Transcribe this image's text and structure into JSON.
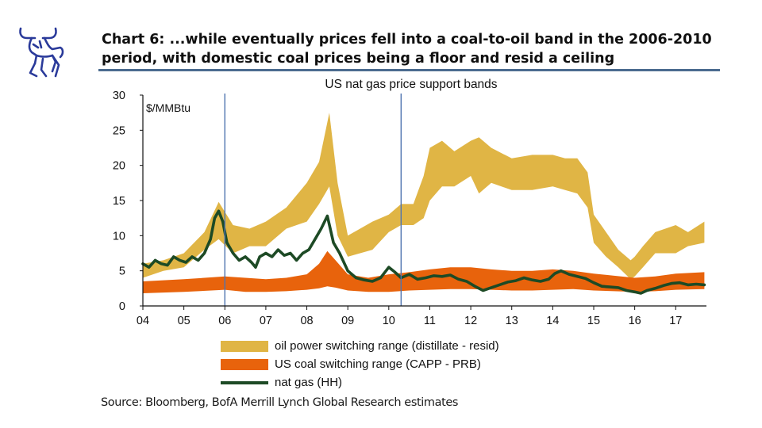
{
  "header": {
    "title": "Chart 6: ...while eventually prices fell into a coal-to-oil band in the 2006-2010 period, with domestic coal prices being a floor and resid a ceiling",
    "logo": "bull-logo-icon"
  },
  "footer": {
    "source": "Source: Bloomberg, BofA Merrill Lynch Global Research estimates"
  },
  "chart_data": {
    "type": "area",
    "title": "US nat gas price support bands",
    "unit_label": "$/MMBtu",
    "xlabel": "",
    "ylabel": "",
    "xlim": [
      2004,
      2017.75
    ],
    "ylim": [
      0,
      30
    ],
    "y_ticks": [
      0,
      5,
      10,
      15,
      20,
      25,
      30
    ],
    "x_ticks": [
      {
        "value": 2004,
        "label": "04"
      },
      {
        "value": 2005,
        "label": "05"
      },
      {
        "value": 2006,
        "label": "06"
      },
      {
        "value": 2007,
        "label": "07"
      },
      {
        "value": 2008,
        "label": "08"
      },
      {
        "value": 2009,
        "label": "09"
      },
      {
        "value": 2010,
        "label": "10"
      },
      {
        "value": 2011,
        "label": "11"
      },
      {
        "value": 2012,
        "label": "12"
      },
      {
        "value": 2013,
        "label": "13"
      },
      {
        "value": 2014,
        "label": "14"
      },
      {
        "value": 2015,
        "label": "15"
      },
      {
        "value": 2016,
        "label": "16"
      },
      {
        "value": 2017,
        "label": "17"
      }
    ],
    "grid": false,
    "legend_position": "bottom",
    "vertical_markers": [
      2006.0,
      2010.3
    ],
    "series": [
      {
        "name": "oil power switching range (distillate - resid)",
        "kind": "band",
        "color": "#e0b545",
        "x": [
          2004.0,
          2004.5,
          2005.0,
          2005.5,
          2005.85,
          2006.2,
          2006.6,
          2007.0,
          2007.5,
          2008.0,
          2008.3,
          2008.55,
          2008.75,
          2009.0,
          2009.3,
          2009.6,
          2010.0,
          2010.3,
          2010.6,
          2010.85,
          2011.0,
          2011.3,
          2011.6,
          2012.0,
          2012.2,
          2012.5,
          2013.0,
          2013.5,
          2014.0,
          2014.3,
          2014.6,
          2014.85,
          2015.0,
          2015.3,
          2015.6,
          2015.9,
          2016.0,
          2016.2,
          2016.5,
          2017.0,
          2017.3,
          2017.7
        ],
        "lower": [
          4.0,
          5.0,
          5.5,
          8.0,
          9.5,
          7.5,
          8.5,
          8.5,
          11.0,
          12.0,
          14.5,
          17.0,
          10.0,
          7.0,
          7.5,
          8.0,
          10.5,
          11.5,
          11.5,
          12.5,
          15.0,
          17.0,
          17.0,
          18.5,
          16.0,
          17.5,
          16.5,
          16.5,
          17.0,
          16.5,
          16.0,
          14.0,
          9.0,
          7.0,
          5.5,
          3.8,
          4.2,
          5.5,
          7.5,
          7.5,
          8.5,
          9.0
        ],
        "upper": [
          6.0,
          6.5,
          7.5,
          10.5,
          14.8,
          11.5,
          11.0,
          12.0,
          14.0,
          17.5,
          20.5,
          27.5,
          17.5,
          10.0,
          11.0,
          12.0,
          13.0,
          14.5,
          14.5,
          18.5,
          22.5,
          23.5,
          22.0,
          23.5,
          24.0,
          22.5,
          21.0,
          21.5,
          21.5,
          21.0,
          21.0,
          19.0,
          13.0,
          10.5,
          8.0,
          6.5,
          7.0,
          8.5,
          10.5,
          11.5,
          10.5,
          12.0
        ]
      },
      {
        "name": "US coal switching range (CAPP - PRB)",
        "kind": "band",
        "color": "#e8630c",
        "x": [
          2004.0,
          2005.0,
          2006.0,
          2006.5,
          2007.0,
          2007.5,
          2008.0,
          2008.3,
          2008.5,
          2008.7,
          2009.0,
          2009.5,
          2010.0,
          2010.5,
          2011.0,
          2011.5,
          2012.0,
          2012.5,
          2013.0,
          2013.5,
          2014.0,
          2014.5,
          2015.0,
          2015.5,
          2016.0,
          2016.5,
          2017.0,
          2017.7
        ],
        "lower": [
          1.8,
          2.0,
          2.3,
          2.0,
          2.0,
          2.1,
          2.3,
          2.5,
          2.8,
          2.6,
          2.2,
          2.0,
          2.0,
          2.2,
          2.3,
          2.4,
          2.4,
          2.3,
          2.2,
          2.2,
          2.3,
          2.4,
          2.2,
          2.1,
          2.0,
          2.1,
          2.3,
          2.4
        ],
        "upper": [
          3.5,
          3.8,
          4.2,
          4.0,
          3.8,
          4.0,
          4.5,
          6.0,
          7.8,
          6.5,
          4.5,
          4.0,
          4.5,
          4.8,
          5.2,
          5.5,
          5.5,
          5.2,
          5.0,
          5.0,
          5.2,
          5.0,
          4.6,
          4.3,
          4.0,
          4.2,
          4.6,
          4.8
        ]
      },
      {
        "name": "nat gas (HH)",
        "kind": "line",
        "color": "#1d4a25",
        "x": [
          2004.0,
          2004.15,
          2004.3,
          2004.45,
          2004.6,
          2004.75,
          2004.9,
          2005.05,
          2005.2,
          2005.35,
          2005.5,
          2005.65,
          2005.75,
          2005.85,
          2005.95,
          2006.05,
          2006.2,
          2006.35,
          2006.5,
          2006.65,
          2006.75,
          2006.85,
          2007.0,
          2007.15,
          2007.3,
          2007.45,
          2007.6,
          2007.75,
          2007.9,
          2008.05,
          2008.2,
          2008.35,
          2008.5,
          2008.65,
          2008.8,
          2009.0,
          2009.2,
          2009.4,
          2009.6,
          2009.8,
          2010.0,
          2010.15,
          2010.3,
          2010.5,
          2010.7,
          2010.9,
          2011.1,
          2011.3,
          2011.5,
          2011.7,
          2011.9,
          2012.1,
          2012.3,
          2012.5,
          2012.7,
          2012.9,
          2013.1,
          2013.3,
          2013.5,
          2013.7,
          2013.9,
          2014.05,
          2014.2,
          2014.4,
          2014.6,
          2014.8,
          2015.0,
          2015.2,
          2015.4,
          2015.6,
          2015.8,
          2016.0,
          2016.15,
          2016.3,
          2016.5,
          2016.7,
          2016.9,
          2017.1,
          2017.3,
          2017.5,
          2017.7
        ],
        "y": [
          6.0,
          5.5,
          6.5,
          6.0,
          5.8,
          7.0,
          6.5,
          6.2,
          7.0,
          6.5,
          7.5,
          9.5,
          12.5,
          13.5,
          12.0,
          9.0,
          7.5,
          6.5,
          7.0,
          6.2,
          5.5,
          7.0,
          7.5,
          7.0,
          8.0,
          7.2,
          7.5,
          6.5,
          7.5,
          8.0,
          9.5,
          11.0,
          12.8,
          9.0,
          7.5,
          5.0,
          4.0,
          3.7,
          3.5,
          4.0,
          5.5,
          4.8,
          4.0,
          4.5,
          3.8,
          4.0,
          4.3,
          4.2,
          4.4,
          3.8,
          3.5,
          2.8,
          2.2,
          2.6,
          3.0,
          3.4,
          3.6,
          4.0,
          3.7,
          3.5,
          3.8,
          4.6,
          5.0,
          4.5,
          4.2,
          3.9,
          3.3,
          2.8,
          2.7,
          2.6,
          2.2,
          2.0,
          1.8,
          2.2,
          2.5,
          2.9,
          3.2,
          3.3,
          3.0,
          3.1,
          3.0
        ]
      }
    ]
  }
}
